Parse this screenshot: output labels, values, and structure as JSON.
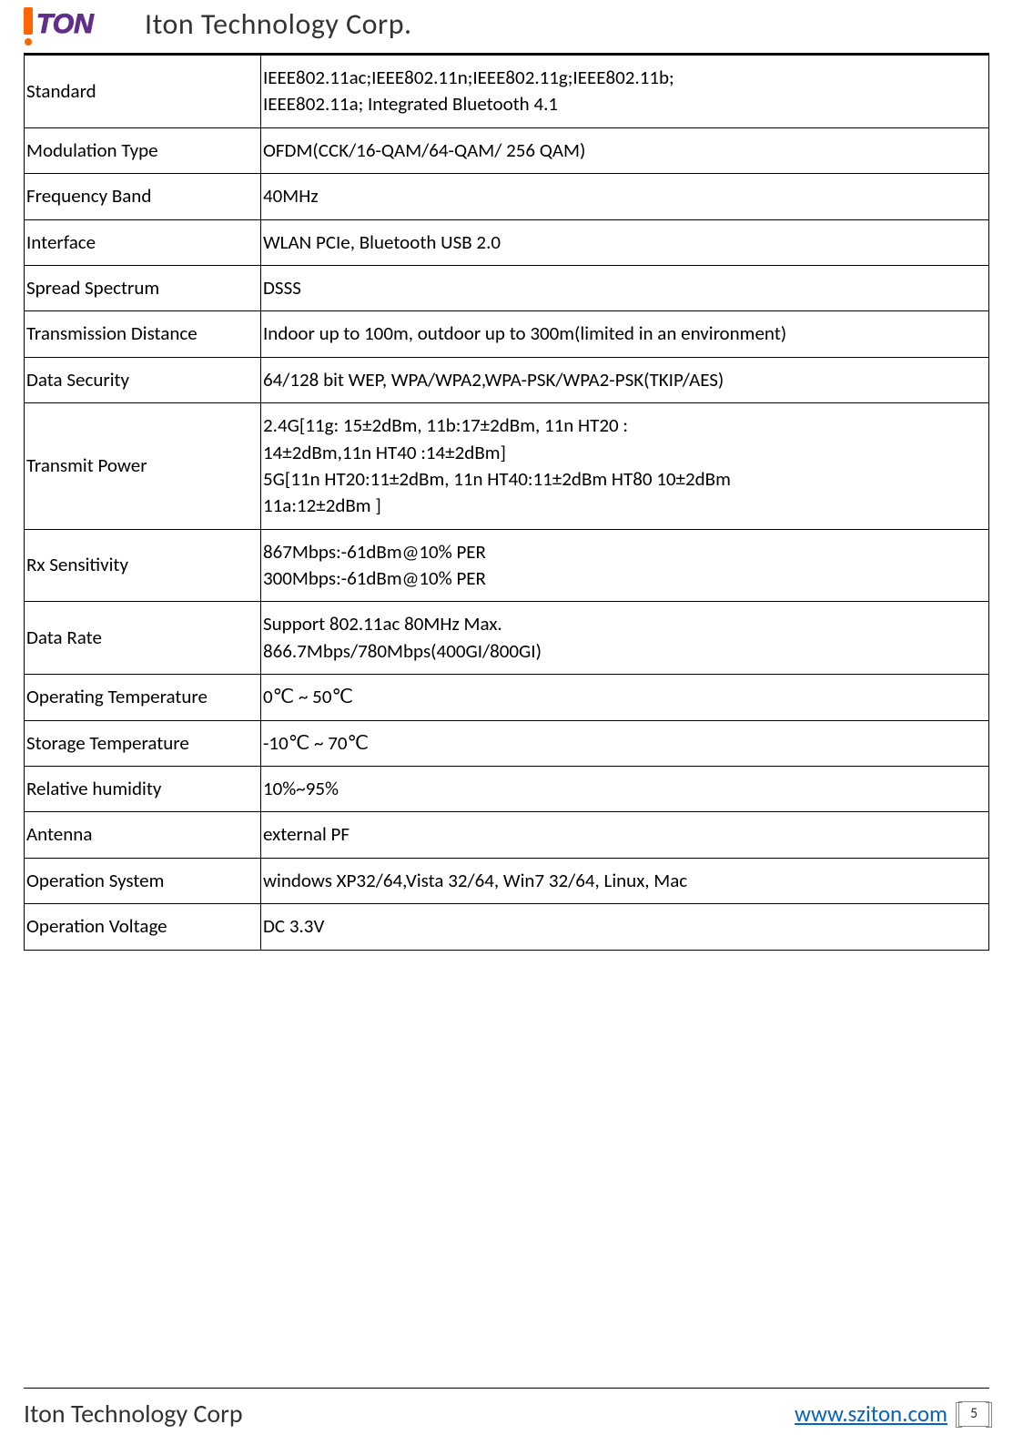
{
  "header": {
    "title": "Iton Technology Corp.",
    "logo_text": "ITON",
    "logo_colors": {
      "bar": "#ff6600",
      "fill": "#602f8a"
    }
  },
  "table": {
    "columns": [
      "label",
      "value"
    ],
    "label_width": 260,
    "border_color": "#000000",
    "font_size": 21,
    "rows": [
      {
        "label": "Standard",
        "value": "IEEE802.11ac;IEEE802.11n;IEEE802.11g;IEEE802.11b;\nIEEE802.11a; Integrated Bluetooth 4.1"
      },
      {
        "label": "Modulation Type",
        "value": "OFDM(CCK/16-QAM/64-QAM/ 256 QAM)"
      },
      {
        "label": "Frequency Band",
        "value": "40MHz"
      },
      {
        "label": "Interface",
        "value": "WLAN PCIe, Bluetooth USB 2.0"
      },
      {
        "label": "Spread Spectrum",
        "value": "DSSS"
      },
      {
        "label": "Transmission Distance",
        "value": "Indoor up to 100m, outdoor up to 300m(limited in an environment)"
      },
      {
        "label": "Data Security",
        "value": "64/128 bit WEP, WPA/WPA2,WPA-PSK/WPA2-PSK(TKIP/AES)"
      },
      {
        "label": "Transmit Power",
        "value": "2.4G[11g: 15±2dBm, 11b:17±2dBm, 11n HT20 :\n14±2dBm,11n HT40 :14±2dBm]\n5G[11n HT20:11±2dBm, 11n HT40:11±2dBm HT80 10±2dBm\n11a:12±2dBm ]"
      },
      {
        "label": "Rx Sensitivity",
        "value": "867Mbps:-61dBm@10% PER\n300Mbps:-61dBm@10% PER"
      },
      {
        "label": "Data Rate",
        "value": "Support 802.11ac 80MHz Max.\n866.7Mbps/780Mbps(400GI/800GI)"
      },
      {
        "label": "Operating Temperature",
        "value": "0℃  ~ 50℃"
      },
      {
        "label": "Storage Temperature",
        "value": "-10℃  ~ 70℃"
      },
      {
        "label": "Relative humidity",
        "value": "10%~95%"
      },
      {
        "label": "Antenna",
        "value": "external PF"
      },
      {
        "label": "Operation System",
        "value": "windows XP32/64,Vista 32/64, Win7 32/64, Linux, Mac"
      },
      {
        "label": "Operation Voltage",
        "value": "DC 3.3V"
      }
    ]
  },
  "footer": {
    "company": "Iton Technology Corp",
    "link": "www.sziton.com",
    "link_color": "#0563c1",
    "page_number": "5"
  }
}
